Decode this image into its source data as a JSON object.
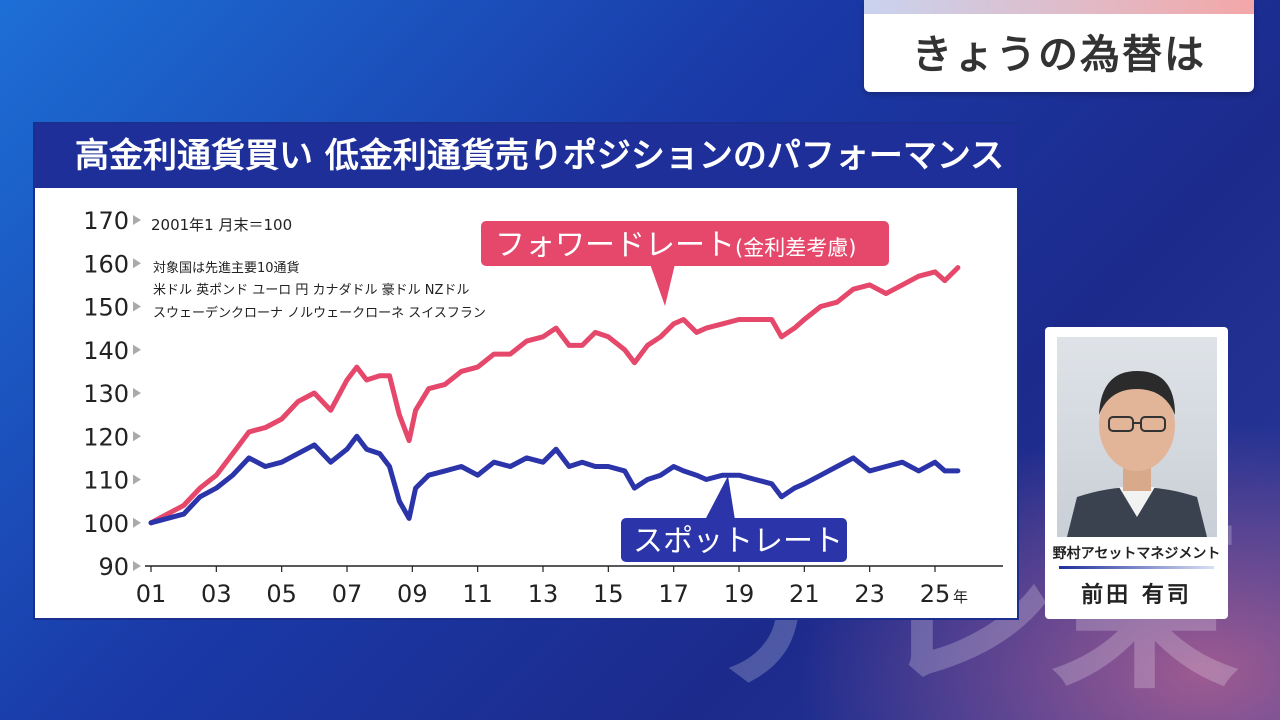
{
  "broadcast": {
    "corner_title": "きょうの為替は",
    "watermark": "テレ東"
  },
  "chart_title": "高金利通貨買い 低金利通貨売りポジションのパフォーマンス",
  "notes": {
    "base": "2001年1 月末＝100",
    "universe": "対象国は先進主要10通貨",
    "currencies_line1": "米ドル 英ポンド ユーロ 円 カナダドル 豪ドル NZドル",
    "currencies_line2": "スウェーデンクローナ ノルウェークローネ スイスフラン"
  },
  "chart_data": {
    "type": "line",
    "x_tick_labels": [
      "01",
      "03",
      "05",
      "07",
      "09",
      "11",
      "13",
      "15",
      "17",
      "19",
      "21",
      "23",
      "25"
    ],
    "x_unit": "年",
    "ylim": [
      90,
      170
    ],
    "y_ticks": [
      90,
      100,
      110,
      120,
      130,
      140,
      150,
      160,
      170
    ],
    "x": [
      2001.0,
      2001.5,
      2002.0,
      2002.5,
      2003.0,
      2003.5,
      2004.0,
      2004.5,
      2005.0,
      2005.5,
      2006.0,
      2006.5,
      2007.0,
      2007.3,
      2007.6,
      2008.0,
      2008.3,
      2008.6,
      2008.9,
      2009.1,
      2009.5,
      2010.0,
      2010.5,
      2011.0,
      2011.5,
      2012.0,
      2012.5,
      2013.0,
      2013.4,
      2013.8,
      2014.2,
      2014.6,
      2015.0,
      2015.5,
      2015.8,
      2016.2,
      2016.6,
      2017.0,
      2017.3,
      2017.7,
      2018.0,
      2018.5,
      2019.0,
      2019.5,
      2020.0,
      2020.3,
      2020.7,
      2021.0,
      2021.5,
      2022.0,
      2022.5,
      2023.0,
      2023.5,
      2024.0,
      2024.5,
      2025.0,
      2025.3,
      2025.7
    ],
    "series": [
      {
        "name": "フォワードレート(金利差考慮)",
        "color": "#e5486b",
        "values": [
          100,
          102,
          104,
          108,
          111,
          116,
          121,
          122,
          124,
          128,
          130,
          126,
          133,
          136,
          133,
          134,
          134,
          125,
          119,
          126,
          131,
          132,
          135,
          136,
          139,
          139,
          142,
          143,
          145,
          141,
          141,
          144,
          143,
          140,
          137,
          141,
          143,
          146,
          147,
          144,
          145,
          146,
          147,
          147,
          147,
          143,
          145,
          147,
          150,
          151,
          154,
          155,
          153,
          155,
          157,
          158,
          156,
          159
        ]
      },
      {
        "name": "スポットレート",
        "color": "#2b34a8",
        "values": [
          100,
          101,
          102,
          106,
          108,
          111,
          115,
          113,
          114,
          116,
          118,
          114,
          117,
          120,
          117,
          116,
          113,
          105,
          101,
          108,
          111,
          112,
          113,
          111,
          114,
          113,
          115,
          114,
          117,
          113,
          114,
          113,
          113,
          112,
          108,
          110,
          111,
          113,
          112,
          111,
          110,
          111,
          111,
          110,
          109,
          106,
          108,
          109,
          111,
          113,
          115,
          112,
          113,
          114,
          112,
          114,
          112,
          112
        ]
      }
    ]
  },
  "labels": {
    "forward": "フォワードレート",
    "forward_suffix": "(金利差考慮)",
    "spot": "スポットレート"
  },
  "profile": {
    "company": "野村アセットマネジメント",
    "name": "前田 有司"
  }
}
